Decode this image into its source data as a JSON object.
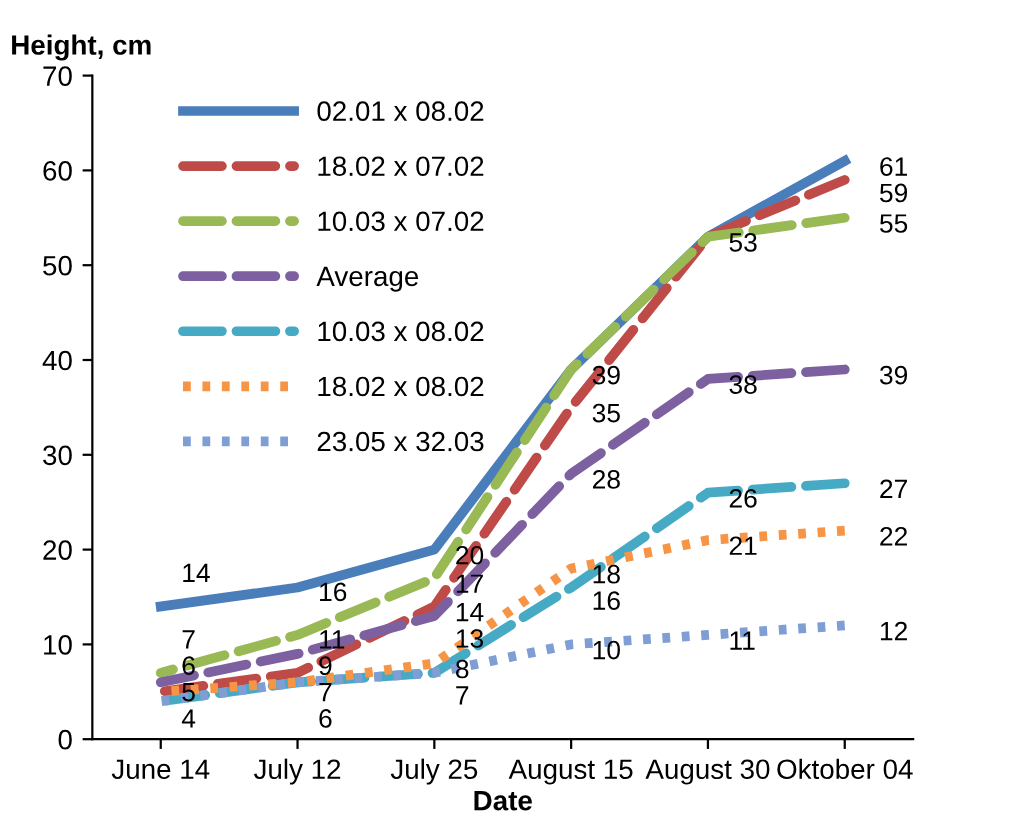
{
  "chart_data": {
    "type": "line",
    "xlabel": "Date",
    "ylabel": "Height, cm",
    "categories": [
      "June 14",
      "July 12",
      "July 25",
      "August 15",
      "August 30",
      "Oktober 04"
    ],
    "series": [
      {
        "name": "02.01 x 08.02",
        "color": "#4a7ebb",
        "line_style": "solid",
        "values": [
          14,
          16,
          20,
          39,
          53,
          61
        ],
        "value_labels": [
          "14",
          "16",
          "20",
          "39",
          "53",
          "61"
        ]
      },
      {
        "name": "18.02 x 07.02",
        "color": "#be4b48",
        "line_style": "dashed",
        "values": [
          5,
          7,
          14,
          35,
          53,
          59
        ],
        "value_labels": [
          "5",
          "7",
          "14",
          "35",
          null,
          "59"
        ]
      },
      {
        "name": "10.03 x 07.02",
        "color": "#98b954",
        "line_style": "dashed",
        "values": [
          7,
          11,
          17,
          39,
          53,
          55
        ],
        "value_labels": [
          "7",
          "11",
          "17",
          null,
          null,
          "55"
        ]
      },
      {
        "name": "Average",
        "color": "#7d60a0",
        "line_style": "dashed",
        "values": [
          6,
          9,
          13,
          28,
          38,
          39
        ],
        "value_labels": [
          "6",
          "9",
          "13",
          "28",
          "38",
          "39"
        ]
      },
      {
        "name": "10.03 x 08.02",
        "color": "#46aac5",
        "line_style": "dashed",
        "values": [
          4,
          6,
          7,
          16,
          26,
          27
        ],
        "value_labels": [
          "4",
          "6",
          "7",
          "16",
          "26",
          "27"
        ]
      },
      {
        "name": "18.02 x 08.02",
        "color": "#f69546",
        "line_style": "dotted",
        "values": [
          5,
          6,
          8,
          18,
          21,
          22
        ],
        "value_labels": [
          null,
          null,
          "8",
          "18",
          "21",
          "22"
        ]
      },
      {
        "name": "23.05 x 32.03",
        "color": "#7f9fd4",
        "line_style": "dotted",
        "values": [
          4,
          6,
          7,
          10,
          11,
          12
        ],
        "value_labels": [
          null,
          null,
          null,
          "10",
          "11",
          "12"
        ]
      }
    ],
    "ylim": [
      0,
      70
    ],
    "yticks": [
      0,
      10,
      20,
      30,
      40,
      50,
      60,
      70
    ],
    "grid": false,
    "legend": "top left",
    "marker": "none"
  }
}
